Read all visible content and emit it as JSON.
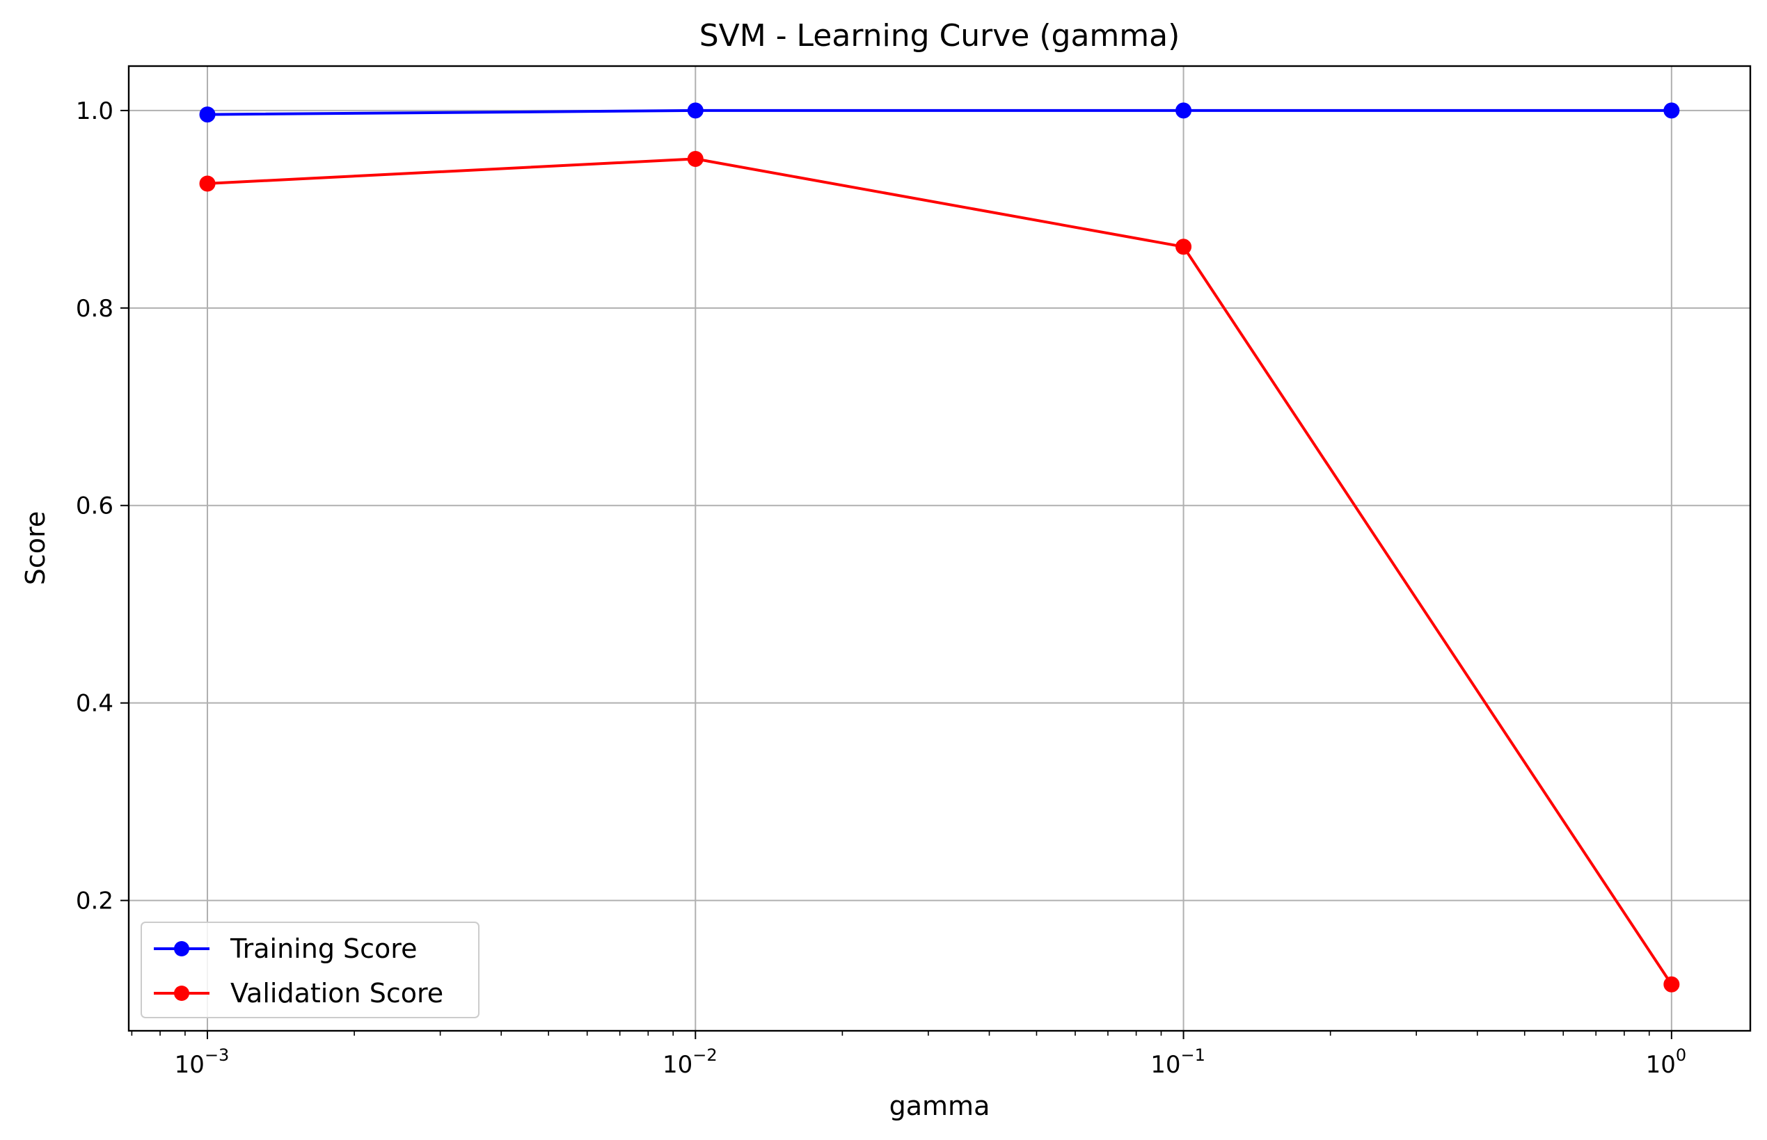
{
  "chart_data": {
    "type": "line",
    "title": "SVM - Learning Curve (gamma)",
    "xlabel": "gamma",
    "ylabel": "Score",
    "xscale": "log",
    "x": [
      0.001,
      0.01,
      0.1,
      1
    ],
    "xlim": [
      0.00069,
      1.45
    ],
    "ylim": [
      0.068,
      1.045
    ],
    "xticks": [
      {
        "value": 0.001,
        "base": "10",
        "exp": "−3"
      },
      {
        "value": 0.01,
        "base": "10",
        "exp": "−2"
      },
      {
        "value": 0.1,
        "base": "10",
        "exp": "−1"
      },
      {
        "value": 1,
        "base": "10",
        "exp": "0"
      }
    ],
    "yticks": [
      0.2,
      0.4,
      0.6,
      0.8,
      1.0
    ],
    "ytick_labels": [
      "0.2",
      "0.4",
      "0.6",
      "0.8",
      "1.0"
    ],
    "grid": true,
    "legend_position": "lower-left",
    "series": [
      {
        "name": "Training Score",
        "color": "#0000ff",
        "values": [
          0.996,
          1.0,
          1.0,
          1.0
        ]
      },
      {
        "name": "Validation Score",
        "color": "#ff0000",
        "values": [
          0.926,
          0.951,
          0.862,
          0.115
        ]
      }
    ]
  }
}
